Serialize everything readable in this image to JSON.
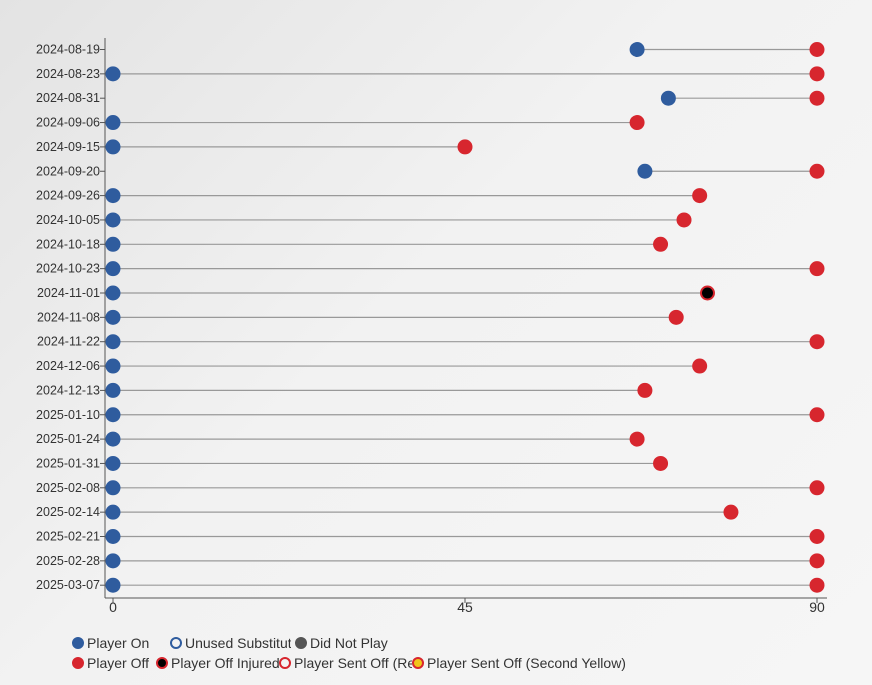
{
  "chart_data": {
    "type": "scatter",
    "subtype": "dumbbell",
    "x_ticks": [
      0,
      45,
      90
    ],
    "xlim": [
      0,
      90
    ],
    "grid": false,
    "legend_position": "bottom-left",
    "categories": [
      "2024-08-19",
      "2024-08-23",
      "2024-08-31",
      "2024-09-06",
      "2024-09-15",
      "2024-09-20",
      "2024-09-26",
      "2024-10-05",
      "2024-10-18",
      "2024-10-23",
      "2024-11-01",
      "2024-11-08",
      "2024-11-22",
      "2024-12-06",
      "2024-12-13",
      "2025-01-10",
      "2025-01-24",
      "2025-01-31",
      "2025-02-08",
      "2025-02-14",
      "2025-02-21",
      "2025-02-28",
      "2025-03-07"
    ],
    "series": [
      {
        "name": "Player On",
        "key": "on",
        "values": [
          67,
          0,
          71,
          0,
          0,
          68,
          0,
          0,
          0,
          0,
          0,
          0,
          0,
          0,
          0,
          0,
          0,
          0,
          0,
          0,
          0,
          0,
          0
        ]
      },
      {
        "name": "Player Off",
        "key": "off",
        "values": [
          90,
          90,
          90,
          67,
          45,
          90,
          75,
          73,
          70,
          90,
          null,
          72,
          90,
          75,
          68,
          90,
          67,
          70,
          90,
          79,
          90,
          90,
          90
        ]
      },
      {
        "name": "Player Off Injured",
        "key": "injured",
        "values": [
          null,
          null,
          null,
          null,
          null,
          null,
          null,
          null,
          null,
          null,
          76,
          null,
          null,
          null,
          null,
          null,
          null,
          null,
          null,
          null,
          null,
          null,
          null
        ]
      }
    ]
  },
  "legend": {
    "rows": [
      [
        {
          "key": "on",
          "label": "Player On",
          "fill": "#2f5c9e",
          "stroke": "#2f5c9e"
        },
        {
          "key": "unused",
          "label": "Unused Substitute",
          "fill": "none",
          "stroke": "#2f5c9e"
        },
        {
          "key": "dnp",
          "label": "Did Not Play",
          "fill": "#555555",
          "stroke": "#555555"
        }
      ],
      [
        {
          "key": "off",
          "label": "Player Off",
          "fill": "#d7262e",
          "stroke": "#d7262e"
        },
        {
          "key": "injured",
          "label": "Player Off Injured",
          "fill": "#000000",
          "stroke": "#d7262e"
        },
        {
          "key": "red",
          "label": "Player Sent Off (Red Card)",
          "fill": "none",
          "stroke": "#d7262e"
        },
        {
          "key": "second",
          "label": "Player Sent Off (Second Yellow)",
          "fill": "#f0c419",
          "stroke": "#d7262e"
        }
      ]
    ]
  },
  "colors": {
    "player_on": "#2f5c9e",
    "player_off": "#d7262e",
    "injured_fill": "#000000",
    "second_yellow": "#f0c419",
    "connector": "#999999",
    "axis": "#555555"
  }
}
